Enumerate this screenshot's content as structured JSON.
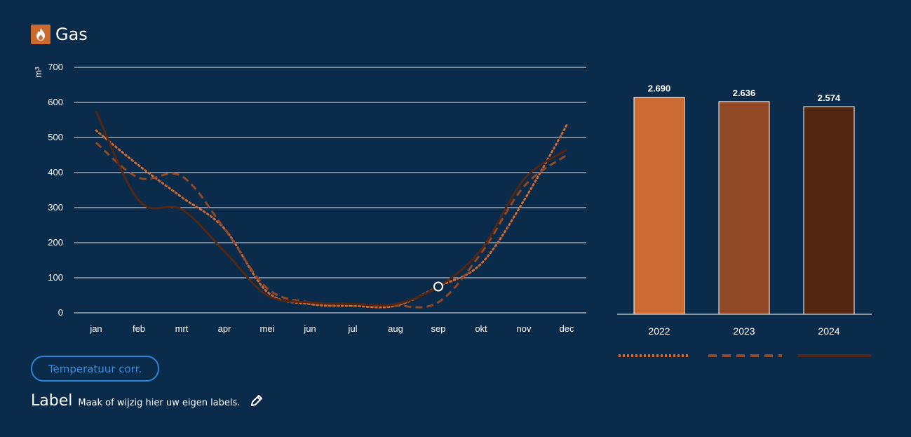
{
  "header": {
    "title": "Gas",
    "icon": "flame-icon"
  },
  "buttons": {
    "temperature": "Temperatuur corr."
  },
  "label_section": {
    "title": "Label",
    "hint": "Maak of wijzig hier uw eigen labels."
  },
  "colors": {
    "background": "#0b2b4a",
    "s2022": "#cc6a33",
    "s2023": "#904826",
    "s2024": "#532612",
    "button": "#2f84d6"
  },
  "chart_data": [
    {
      "type": "line",
      "ylabel": "m³",
      "ylim": [
        0,
        700
      ],
      "yticks": [
        0,
        100,
        200,
        300,
        400,
        500,
        600,
        700
      ],
      "categories": [
        "jan",
        "feb",
        "mrt",
        "apr",
        "mei",
        "jun",
        "jul",
        "aug",
        "sep",
        "okt",
        "nov",
        "dec"
      ],
      "series": [
        {
          "name": "2022",
          "style": "dotted",
          "values": [
            520,
            420,
            330,
            240,
            60,
            25,
            20,
            20,
            75,
            140,
            320,
            535
          ]
        },
        {
          "name": "2023",
          "style": "dashed",
          "values": [
            485,
            385,
            390,
            240,
            70,
            30,
            25,
            20,
            30,
            170,
            360,
            450
          ]
        },
        {
          "name": "2024",
          "style": "solid",
          "values": [
            575,
            320,
            295,
            175,
            50,
            30,
            25,
            25,
            75,
            180,
            380,
            465
          ]
        }
      ],
      "highlight": {
        "category": "sep",
        "value": 75
      }
    },
    {
      "type": "bar",
      "categories": [
        "2022",
        "2023",
        "2024"
      ],
      "values": [
        2690,
        2636,
        2574
      ],
      "value_labels": [
        "2.690",
        "2.636",
        "2.574"
      ]
    }
  ]
}
